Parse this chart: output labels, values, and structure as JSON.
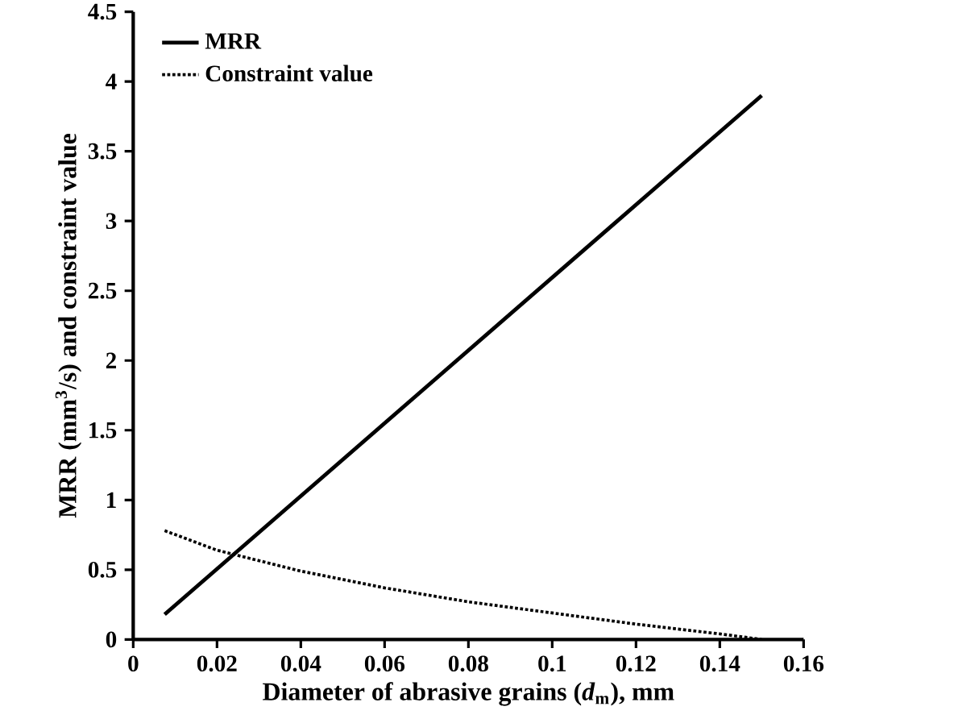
{
  "chart_data": {
    "type": "line",
    "xlabel": "Diameter of abrasive grains (*d*$_{m}$), mm",
    "ylabel": "MRR (mm$^{3}$/s) and constraint value",
    "xlim": [
      0,
      0.16
    ],
    "xticks": [
      0,
      0.02,
      0.04,
      0.06,
      0.08,
      0.1,
      0.12,
      0.14,
      0.16
    ],
    "ylim": [
      0,
      4.5
    ],
    "yticks": [
      0,
      0.5,
      1,
      1.5,
      2,
      2.5,
      3,
      3.5,
      4,
      4.5
    ],
    "grid": false,
    "legend": "top left",
    "marker": "none",
    "series": [
      {
        "name": "MRR",
        "color": "#000000",
        "line_style": "solid",
        "x": [
          0.0075,
          0.15
        ],
        "values": [
          0.18,
          3.9
        ]
      },
      {
        "name": "Constraint value",
        "color": "#000000",
        "line_style": "dotted",
        "x": [
          0.0075,
          0.02,
          0.04,
          0.06,
          0.08,
          0.1,
          0.12,
          0.14,
          0.15
        ],
        "values": [
          0.78,
          0.64,
          0.49,
          0.37,
          0.27,
          0.19,
          0.11,
          0.04,
          0.0
        ]
      }
    ]
  }
}
